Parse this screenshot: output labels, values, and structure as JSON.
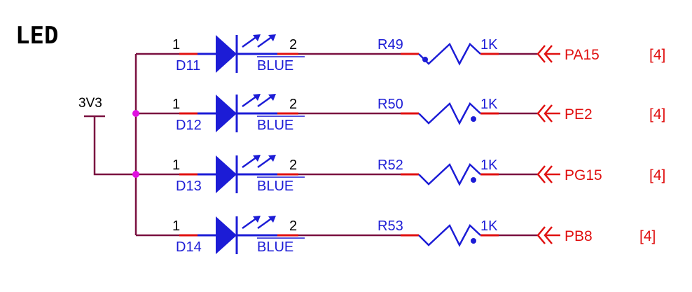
{
  "title": "LED",
  "power_label": "3V3",
  "colors": {
    "wire": "#7a1040",
    "pin": "#e01010",
    "component": "#1c1cd6",
    "net": "#e01010",
    "junction": "#e010e0"
  },
  "rows": [
    {
      "led_ref": "D11",
      "led_value": "BLUE",
      "pin1": "1",
      "pin2": "2",
      "res_ref": "R49",
      "res_value": "1K",
      "net": "PA15",
      "sheet": "[4]"
    },
    {
      "led_ref": "D12",
      "led_value": "BLUE",
      "pin1": "1",
      "pin2": "2",
      "res_ref": "R50",
      "res_value": "1K",
      "net": "PE2",
      "sheet": "[4]"
    },
    {
      "led_ref": "D13",
      "led_value": "BLUE",
      "pin1": "1",
      "pin2": "2",
      "res_ref": "R52",
      "res_value": "1K",
      "net": "PG15",
      "sheet": "[4]"
    },
    {
      "led_ref": "D14",
      "led_value": "BLUE",
      "pin1": "1",
      "pin2": "2",
      "res_ref": "R53",
      "res_value": "1K",
      "net": "PB8",
      "sheet": "[4]"
    }
  ]
}
